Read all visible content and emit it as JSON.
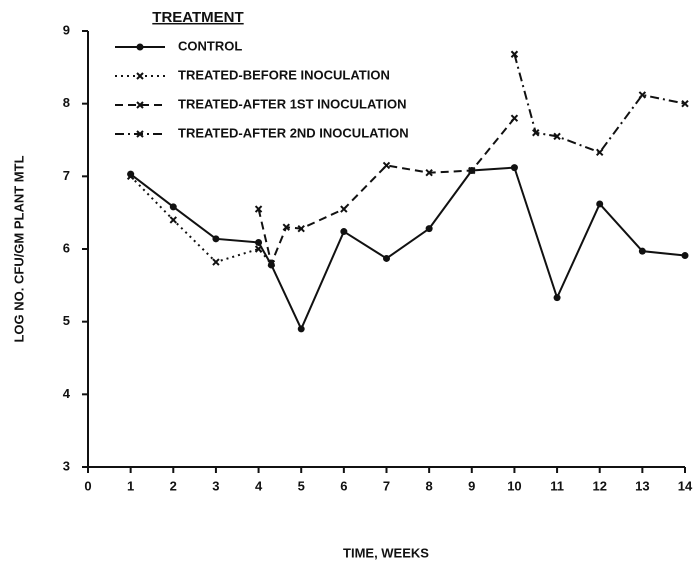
{
  "chart_data": {
    "type": "line",
    "legend_title": "TREATMENT",
    "xlabel": "TIME, WEEKS",
    "ylabel": "LOG NO. CFU/GM PLANT MTL",
    "xlim": [
      0,
      14
    ],
    "xticks": [
      0,
      1,
      2,
      3,
      4,
      5,
      6,
      7,
      8,
      9,
      10,
      11,
      12,
      13,
      14
    ],
    "ylim": [
      3,
      9
    ],
    "yticks": [
      3,
      4,
      5,
      6,
      7,
      8,
      9
    ],
    "legend": "upper left",
    "series": [
      {
        "name": "CONTROL",
        "color": "#111111",
        "dash": "solid",
        "marker": "dot",
        "x": [
          1,
          2,
          3,
          4,
          4.3,
          5,
          6,
          7,
          8,
          9,
          10,
          11,
          12,
          13,
          14
        ],
        "values": [
          7.03,
          6.58,
          6.14,
          6.09,
          5.78,
          4.9,
          6.24,
          5.87,
          6.28,
          7.08,
          7.12,
          5.33,
          6.62,
          5.97,
          5.91
        ]
      },
      {
        "name": "TREATED-BEFORE INOCULATION",
        "color": "#111111",
        "dash": "dotted",
        "marker": "x",
        "x": [
          1,
          2,
          3,
          4,
          4.3
        ],
        "values": [
          7.0,
          6.4,
          5.82,
          6.0,
          5.8
        ]
      },
      {
        "name": "TREATED-AFTER 1ST INOCULATION",
        "color": "#111111",
        "dash": "dashed",
        "marker": "x",
        "x": [
          4,
          4.3,
          4.65,
          5,
          6,
          7,
          8,
          9,
          10
        ],
        "values": [
          6.55,
          5.8,
          6.3,
          6.28,
          6.55,
          7.15,
          7.05,
          7.08,
          7.8
        ]
      },
      {
        "name": "TREATED-AFTER 2ND INOCULATION",
        "color": "#111111",
        "dash": "dashdot",
        "marker": "x",
        "x": [
          10,
          10.5,
          11,
          12,
          13,
          14
        ],
        "values": [
          8.68,
          7.6,
          7.55,
          7.33,
          8.12,
          8.0
        ]
      }
    ]
  }
}
